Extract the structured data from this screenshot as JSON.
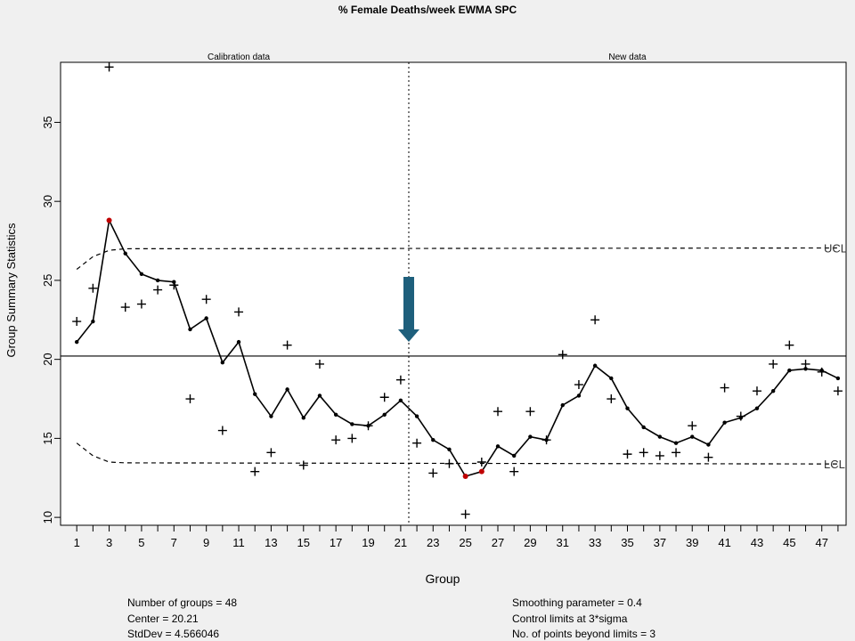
{
  "chart_data": {
    "type": "line",
    "title": "% Female Deaths/week EWMA SPC",
    "xlabel": "Group",
    "ylabel": "Group Summary Statistics",
    "xlim": [
      0,
      48.5
    ],
    "ylim": [
      9.5,
      38.8
    ],
    "x_ticks": [
      1,
      3,
      5,
      7,
      9,
      11,
      13,
      15,
      17,
      19,
      21,
      23,
      25,
      27,
      29,
      31,
      33,
      35,
      37,
      39,
      41,
      43,
      45,
      47
    ],
    "x_minor_ticks": [
      2,
      4,
      6,
      8,
      10,
      12,
      14,
      16,
      18,
      20,
      22,
      24,
      26,
      28,
      30,
      32,
      34,
      36,
      38,
      40,
      42,
      44,
      46,
      48
    ],
    "y_ticks": [
      10,
      15,
      20,
      25,
      30,
      35
    ],
    "sections": [
      {
        "label": "Calibration data",
        "x": 11
      },
      {
        "label": "New data",
        "x": 35
      }
    ],
    "divider_x": 21.5,
    "center": 20.21,
    "center_line_style": "solid",
    "ucl": 27.05,
    "lcl": 13.38,
    "ucl_label": "UCL",
    "lcl_label": "LCL",
    "ucl_start": [
      25.7,
      26.5,
      26.9,
      27.0
    ],
    "lcl_start": [
      14.7,
      13.9,
      13.5,
      13.45
    ],
    "series": [
      {
        "type": "scatter",
        "marker": "+",
        "values": [
          22.4,
          24.5,
          38.5,
          23.3,
          23.5,
          24.4,
          24.7,
          17.5,
          23.8,
          15.5,
          23.0,
          12.9,
          14.1,
          20.9,
          13.3,
          19.7,
          14.9,
          15.0,
          15.8,
          17.6,
          18.7,
          14.7,
          12.8,
          13.4,
          10.2,
          13.5,
          16.7,
          12.9,
          16.7,
          14.9,
          20.3,
          18.4,
          22.5,
          17.5,
          14.0,
          14.1,
          13.9,
          14.1,
          15.8,
          13.8,
          18.2,
          16.4,
          18.0,
          19.7,
          20.9,
          19.7,
          19.2,
          18.0
        ]
      },
      {
        "type": "line",
        "marker": "dot",
        "values": [
          21.1,
          22.4,
          28.8,
          26.7,
          25.4,
          25.0,
          24.9,
          21.9,
          22.6,
          19.8,
          21.1,
          17.8,
          16.4,
          18.1,
          16.3,
          17.7,
          16.5,
          15.9,
          15.8,
          16.5,
          17.4,
          16.4,
          14.9,
          14.3,
          12.6,
          12.9,
          14.5,
          13.9,
          15.1,
          14.9,
          17.1,
          17.7,
          19.6,
          18.8,
          16.9,
          15.7,
          15.1,
          14.7,
          15.1,
          14.6,
          16.0,
          16.3,
          16.9,
          18.0,
          19.3,
          19.4,
          19.3,
          18.8
        ]
      }
    ],
    "beyond_limit_points": [
      3,
      25,
      26
    ],
    "colors": {
      "background": "#f0f0f0",
      "plot_area": "#ffffff",
      "beyond_limit": "#c00000",
      "arrow": "#1e5f7c"
    },
    "annotation": {
      "shape": "down-arrow",
      "x": 21.5
    }
  },
  "stats": {
    "groups": "Number of groups = 48",
    "center": "Center = 20.21",
    "stddev": "StdDev = 4.566046",
    "smoothing": "Smoothing parameter =  0.4",
    "control_limits": "Control limits at 3*sigma",
    "beyond_limits": "No. of points beyond limits = 3"
  }
}
